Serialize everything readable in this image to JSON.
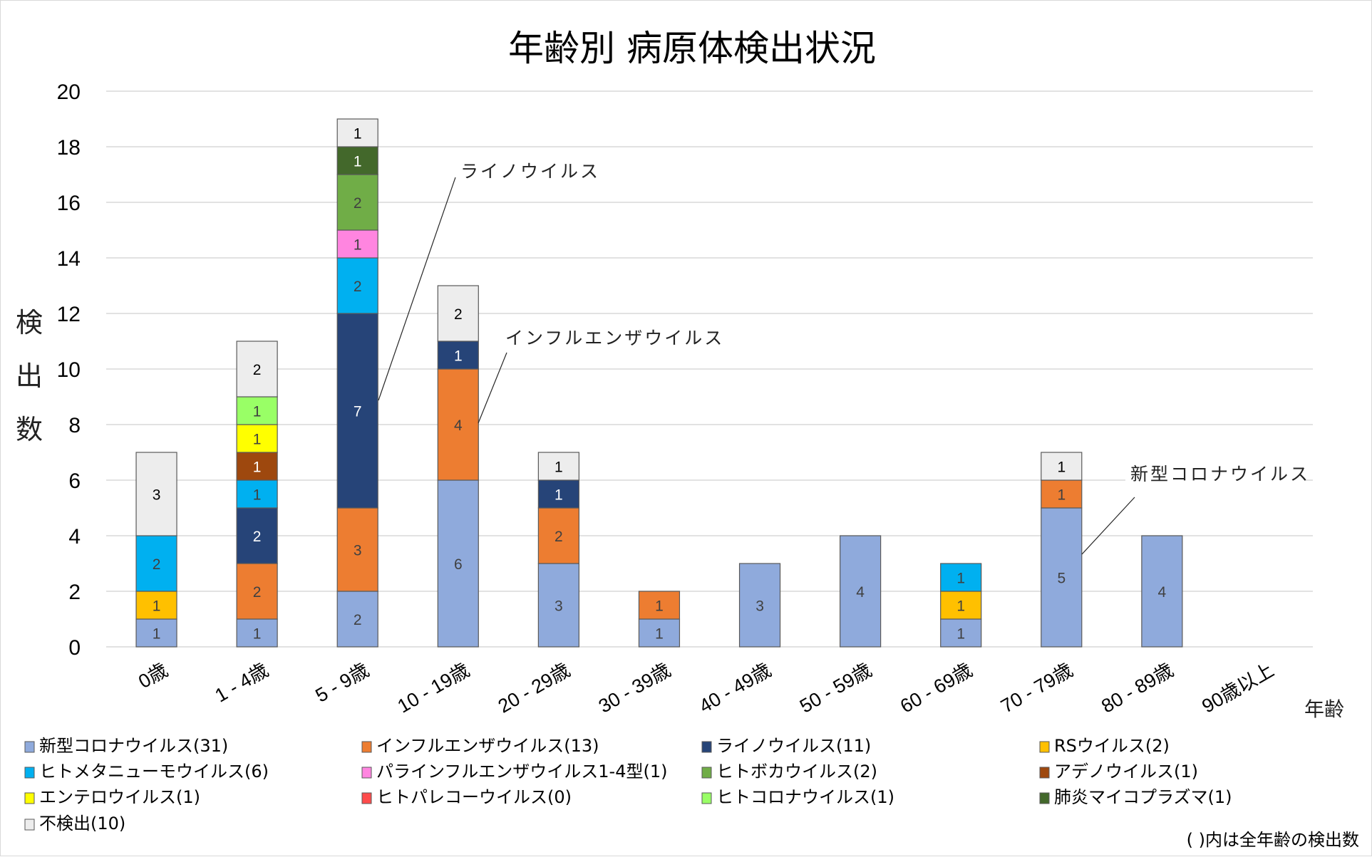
{
  "chart_data": {
    "type": "bar",
    "stacked": true,
    "title": "年齢別 病原体検出状況",
    "xlabel": "年齢",
    "ylabel": "検出数",
    "ylim": [
      0,
      20
    ],
    "yticks": [
      0,
      2,
      4,
      6,
      8,
      10,
      12,
      14,
      16,
      18,
      20
    ],
    "grid": true,
    "legend_position": "bottom",
    "categories": [
      "0歳",
      "1 - 4歳",
      "5 - 9歳",
      "10 - 19歳",
      "20 - 29歳",
      "30 - 39歳",
      "40 - 49歳",
      "50 - 59歳",
      "60 - 69歳",
      "70 - 79歳",
      "80 - 89歳",
      "90歳以上"
    ],
    "series": [
      {
        "name": "新型コロナウイルス",
        "total": 31,
        "color": "#8faadc",
        "label_color": "#404040",
        "values": [
          1,
          1,
          2,
          6,
          3,
          1,
          3,
          4,
          1,
          5,
          4,
          0
        ]
      },
      {
        "name": "インフルエンザウイルス",
        "total": 13,
        "color": "#ed7d31",
        "label_color": "#404040",
        "values": [
          0,
          2,
          3,
          4,
          2,
          1,
          0,
          0,
          0,
          1,
          0,
          0
        ]
      },
      {
        "name": "ライノウイルス",
        "total": 11,
        "color": "#264478",
        "label_color": "#ffffff",
        "values": [
          0,
          2,
          7,
          1,
          1,
          0,
          0,
          0,
          0,
          0,
          0,
          0
        ]
      },
      {
        "name": "RSウイルス",
        "total": 2,
        "color": "#ffc000",
        "label_color": "#404040",
        "values": [
          1,
          0,
          0,
          0,
          0,
          0,
          0,
          0,
          1,
          0,
          0,
          0
        ]
      },
      {
        "name": "ヒトメタニューモウイルス",
        "total": 6,
        "color": "#00b0f0",
        "label_color": "#404040",
        "values": [
          2,
          1,
          2,
          0,
          0,
          0,
          0,
          0,
          1,
          0,
          0,
          0
        ]
      },
      {
        "name": "パラインフルエンザウイルス1-4型",
        "total": 1,
        "color": "#ff85e0",
        "label_color": "#404040",
        "values": [
          0,
          0,
          1,
          0,
          0,
          0,
          0,
          0,
          0,
          0,
          0,
          0
        ]
      },
      {
        "name": "ヒトボカウイルス",
        "total": 2,
        "color": "#70ad47",
        "label_color": "#404040",
        "values": [
          0,
          0,
          2,
          0,
          0,
          0,
          0,
          0,
          0,
          0,
          0,
          0
        ]
      },
      {
        "name": "アデノウイルス",
        "total": 1,
        "color": "#9e480e",
        "label_color": "#ffffff",
        "values": [
          0,
          1,
          0,
          0,
          0,
          0,
          0,
          0,
          0,
          0,
          0,
          0
        ]
      },
      {
        "name": "エンテロウイルス",
        "total": 1,
        "color": "#ffff00",
        "label_color": "#404040",
        "values": [
          0,
          1,
          0,
          0,
          0,
          0,
          0,
          0,
          0,
          0,
          0,
          0
        ]
      },
      {
        "name": "ヒトパレコーウイルス",
        "total": 0,
        "color": "#ff4b4b",
        "label_color": "#404040",
        "values": [
          0,
          0,
          0,
          0,
          0,
          0,
          0,
          0,
          0,
          0,
          0,
          0
        ]
      },
      {
        "name": "ヒトコロナウイルス",
        "total": 1,
        "color": "#99ff66",
        "label_color": "#404040",
        "values": [
          0,
          1,
          0,
          0,
          0,
          0,
          0,
          0,
          0,
          0,
          0,
          0
        ]
      },
      {
        "name": "肺炎マイコプラズマ",
        "total": 1,
        "color": "#43682b",
        "label_color": "#ffffff",
        "values": [
          0,
          0,
          1,
          0,
          0,
          0,
          0,
          0,
          0,
          0,
          0,
          0
        ]
      },
      {
        "name": "不検出",
        "total": 10,
        "color": "#ededed",
        "label_color": "#000000",
        "values": [
          3,
          2,
          1,
          2,
          1,
          0,
          0,
          0,
          0,
          1,
          0,
          0
        ]
      }
    ],
    "annotations": [
      {
        "text": "ライノウイルス",
        "series": "ライノウイルス",
        "category": "5 - 9歳"
      },
      {
        "text": "インフルエンザウイルス",
        "series": "インフルエンザウイルス",
        "category": "10 - 19歳"
      },
      {
        "text": "新型コロナウイルス",
        "series": "新型コロナウイルス",
        "category": "70 - 79歳"
      }
    ],
    "note": "( )内は全年齢の検出数"
  }
}
